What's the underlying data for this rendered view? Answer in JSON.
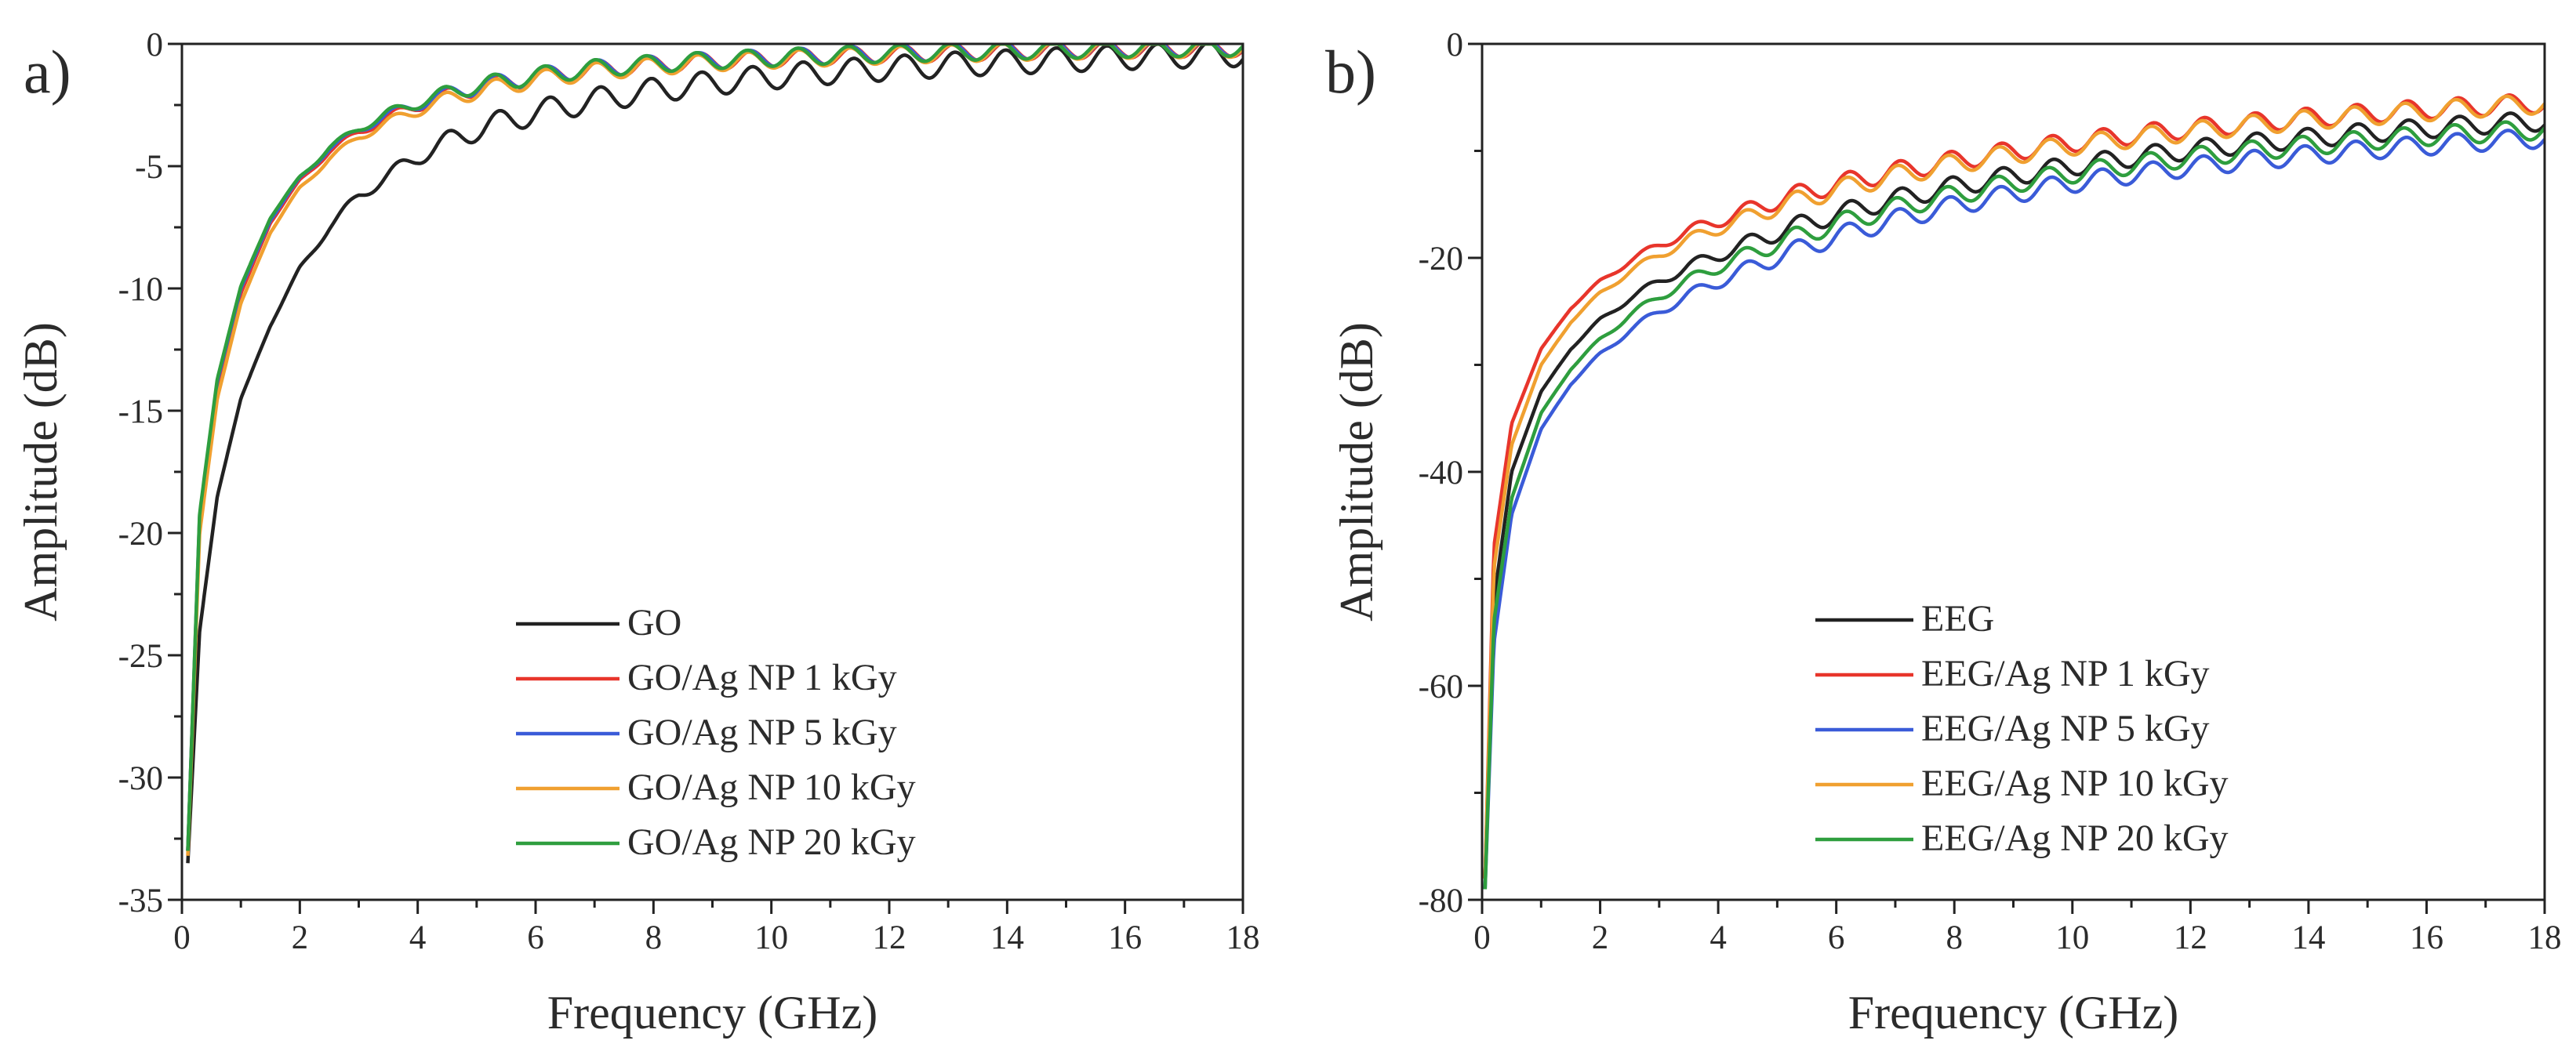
{
  "chart_data": [
    {
      "panel": "a)",
      "type": "line",
      "xlabel": "Frequency (GHz)",
      "ylabel": "Amplitude (dB)",
      "xlim": [
        0,
        18
      ],
      "ylim": [
        -35,
        0
      ],
      "xticks": [
        0,
        2,
        4,
        6,
        8,
        10,
        12,
        14,
        16,
        18
      ],
      "yticks": [
        0,
        -5,
        -10,
        -15,
        -20,
        -25,
        -30,
        -35
      ],
      "legend_position": "bottom-right",
      "series": [
        {
          "name": "GO",
          "color": "#222222",
          "x": [
            0.1,
            0.3,
            0.6,
            1,
            1.5,
            2,
            2.5,
            3,
            3.5,
            4,
            4.5,
            5,
            6,
            7,
            8,
            9,
            10,
            11,
            12,
            13,
            14,
            15,
            16,
            17,
            18
          ],
          "values": [
            -33.5,
            -24,
            -18.5,
            -14.5,
            -11.5,
            -9.2,
            -7.5,
            -6.2,
            -5.4,
            -4.6,
            -4.0,
            -3.5,
            -2.8,
            -2.3,
            -1.9,
            -1.6,
            -1.35,
            -1.15,
            -1.0,
            -0.85,
            -0.75,
            -0.65,
            -0.55,
            -0.48,
            -0.42
          ],
          "ripple": 0.5
        },
        {
          "name": "GO/Ag NP 1 kGy",
          "color": "#e8352b",
          "x": [
            0.1,
            0.3,
            0.6,
            1,
            1.5,
            2,
            2.5,
            3,
            3.5,
            4,
            4.5,
            5,
            6,
            7,
            8,
            9,
            10,
            11,
            12,
            13,
            14,
            15,
            16,
            17,
            18
          ],
          "values": [
            -33,
            -19.5,
            -14,
            -10.2,
            -7.3,
            -5.6,
            -4.4,
            -3.6,
            -3.0,
            -2.5,
            -2.1,
            -1.8,
            -1.35,
            -1.05,
            -0.85,
            -0.7,
            -0.6,
            -0.5,
            -0.42,
            -0.36,
            -0.3,
            -0.26,
            -0.22,
            -0.19,
            -0.17
          ],
          "ripple": 0.35
        },
        {
          "name": "GO/Ag NP 5 kGy",
          "color": "#3a5bd8",
          "x": [
            0.1,
            0.3,
            0.6,
            1,
            1.5,
            2,
            2.5,
            3,
            3.5,
            4,
            4.5,
            5,
            6,
            7,
            8,
            9,
            10,
            11,
            12,
            13,
            14,
            15,
            16,
            17,
            18
          ],
          "values": [
            -33,
            -19.3,
            -13.8,
            -10.0,
            -7.2,
            -5.5,
            -4.3,
            -3.5,
            -2.9,
            -2.45,
            -2.05,
            -1.75,
            -1.32,
            -1.02,
            -0.83,
            -0.68,
            -0.58,
            -0.48,
            -0.41,
            -0.35,
            -0.29,
            -0.25,
            -0.21,
            -0.18,
            -0.16
          ],
          "ripple": 0.35
        },
        {
          "name": "GO/Ag NP 10 kGy",
          "color": "#f0a030",
          "x": [
            0.1,
            0.3,
            0.6,
            1,
            1.5,
            2,
            2.5,
            3,
            3.5,
            4,
            4.5,
            5,
            6,
            7,
            8,
            9,
            10,
            11,
            12,
            13,
            14,
            15,
            16,
            17,
            18
          ],
          "values": [
            -33.2,
            -20,
            -14.5,
            -10.6,
            -7.7,
            -5.9,
            -4.7,
            -3.8,
            -3.2,
            -2.7,
            -2.25,
            -1.95,
            -1.45,
            -1.12,
            -0.92,
            -0.76,
            -0.64,
            -0.54,
            -0.46,
            -0.39,
            -0.33,
            -0.28,
            -0.24,
            -0.21,
            -0.19
          ],
          "ripple": 0.35
        },
        {
          "name": "GO/Ag NP 20 kGy",
          "color": "#2e9e3e",
          "x": [
            0.1,
            0.3,
            0.6,
            1,
            1.5,
            2,
            2.5,
            3,
            3.5,
            4,
            4.5,
            5,
            6,
            7,
            8,
            9,
            10,
            11,
            12,
            13,
            14,
            15,
            16,
            17,
            18
          ],
          "values": [
            -33,
            -19.2,
            -13.7,
            -9.9,
            -7.1,
            -5.45,
            -4.25,
            -3.45,
            -2.85,
            -2.4,
            -2.0,
            -1.72,
            -1.3,
            -1.0,
            -0.81,
            -0.67,
            -0.57,
            -0.47,
            -0.4,
            -0.34,
            -0.28,
            -0.24,
            -0.2,
            -0.17,
            -0.15
          ],
          "ripple": 0.35
        }
      ]
    },
    {
      "panel": "b)",
      "type": "line",
      "xlabel": "Frequency (GHz)",
      "ylabel": "Amplitude (dB)",
      "xlim": [
        0,
        18
      ],
      "ylim": [
        -80,
        0
      ],
      "xticks": [
        0,
        2,
        4,
        6,
        8,
        10,
        12,
        14,
        16,
        18
      ],
      "yticks": [
        0,
        -20,
        -40,
        -60,
        -80
      ],
      "legend_position": "bottom-right",
      "series": [
        {
          "name": "EEG",
          "color": "#222222",
          "x": [
            0.05,
            0.2,
            0.5,
            1,
            1.5,
            2,
            2.5,
            3,
            3.5,
            4,
            5,
            6,
            7,
            8,
            9,
            10,
            11,
            12,
            13,
            14,
            15,
            16,
            17,
            18
          ],
          "values": [
            -78,
            -52,
            -40,
            -32.5,
            -28.5,
            -25.8,
            -23.8,
            -22.2,
            -20.8,
            -19.7,
            -17.6,
            -15.9,
            -14.5,
            -13.3,
            -12.3,
            -11.4,
            -10.6,
            -9.9,
            -9.3,
            -8.8,
            -8.3,
            -7.9,
            -7.5,
            -7.2
          ],
          "ripple": 0.9
        },
        {
          "name": "EEG/Ag NP 1 kGy",
          "color": "#e8352b",
          "x": [
            0.05,
            0.2,
            0.5,
            1,
            1.5,
            2,
            2.5,
            3,
            3.5,
            4,
            5,
            6,
            7,
            8,
            9,
            10,
            11,
            12,
            13,
            14,
            15,
            16,
            17,
            18
          ],
          "values": [
            -78,
            -47,
            -35.5,
            -28.5,
            -24.7,
            -22.2,
            -20.3,
            -18.8,
            -17.5,
            -16.5,
            -14.6,
            -13.1,
            -11.9,
            -10.9,
            -10.0,
            -9.2,
            -8.5,
            -7.9,
            -7.4,
            -6.9,
            -6.5,
            -6.1,
            -5.8,
            -5.5
          ],
          "ripple": 0.9
        },
        {
          "name": "EEG/Ag NP 5 kGy",
          "color": "#3a5bd8",
          "x": [
            0.05,
            0.2,
            0.5,
            1,
            1.5,
            2,
            2.5,
            3,
            3.5,
            4,
            5,
            6,
            7,
            8,
            9,
            10,
            11,
            12,
            13,
            14,
            15,
            16,
            17,
            18
          ],
          "values": [
            -79,
            -56,
            -44,
            -36,
            -31.8,
            -29,
            -26.8,
            -25,
            -23.5,
            -22.2,
            -19.9,
            -18.0,
            -16.4,
            -15.1,
            -14.0,
            -13.0,
            -12.2,
            -11.5,
            -10.9,
            -10.4,
            -9.9,
            -9.5,
            -9.1,
            -8.8
          ],
          "ripple": 0.9
        },
        {
          "name": "EEG/Ag NP 10 kGy",
          "color": "#f0a030",
          "x": [
            0.05,
            0.2,
            0.5,
            1,
            1.5,
            2,
            2.5,
            3,
            3.5,
            4,
            5,
            6,
            7,
            8,
            9,
            10,
            11,
            12,
            13,
            14,
            15,
            16,
            17,
            18
          ],
          "values": [
            -78,
            -49,
            -37.5,
            -30.0,
            -26.0,
            -23.3,
            -21.3,
            -19.7,
            -18.3,
            -17.2,
            -15.2,
            -13.6,
            -12.3,
            -11.2,
            -10.3,
            -9.5,
            -8.8,
            -8.2,
            -7.6,
            -7.1,
            -6.7,
            -6.3,
            -5.9,
            -5.6
          ],
          "ripple": 0.9
        },
        {
          "name": "EEG/Ag NP 20 kGy",
          "color": "#2e9e3e",
          "x": [
            0.05,
            0.2,
            0.5,
            1,
            1.5,
            2,
            2.5,
            3,
            3.5,
            4,
            5,
            6,
            7,
            8,
            9,
            10,
            11,
            12,
            13,
            14,
            15,
            16,
            17,
            18
          ],
          "values": [
            -79,
            -54,
            -42.5,
            -34.5,
            -30.4,
            -27.6,
            -25.4,
            -23.6,
            -22.1,
            -20.8,
            -18.6,
            -16.8,
            -15.3,
            -14.1,
            -13.0,
            -12.1,
            -11.3,
            -10.6,
            -10.0,
            -9.5,
            -9.0,
            -8.6,
            -8.3,
            -8.0
          ],
          "ripple": 0.9
        }
      ]
    }
  ]
}
